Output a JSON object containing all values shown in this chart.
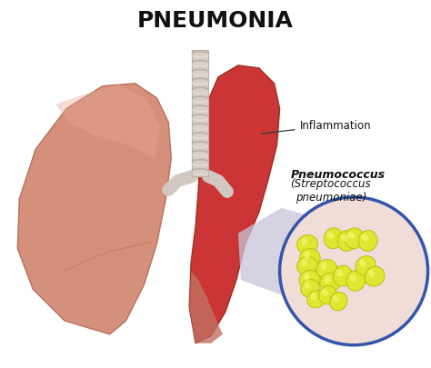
{
  "title": "PNEUMONIA",
  "title_fontsize": 18,
  "title_color": "#111111",
  "title_weight": "bold",
  "background_color": "#ffffff",
  "inflammation_label": "Inflammation",
  "bacteria_label_bold": "Pneumococcus",
  "bacteria_label_italic": "(Streptococcus\npneumoniae)",
  "left_lung_color": "#d4907a",
  "left_lung_edge": "#b87060",
  "right_lung_color": "#cc3030",
  "right_lung_bottom": "#c07060",
  "trachea_fill": "#d8d0c8",
  "trachea_ring": "#b8b0a8",
  "circle_bg": "#f0ddd8",
  "circle_border": "#3355aa",
  "bacteria_main": "#dde830",
  "bacteria_shadow": "#b8c010",
  "bacteria_highlight": "#f5f570",
  "peel_color": "#ccc0d0",
  "label_color": "#111111",
  "arrow_color": "#333333"
}
